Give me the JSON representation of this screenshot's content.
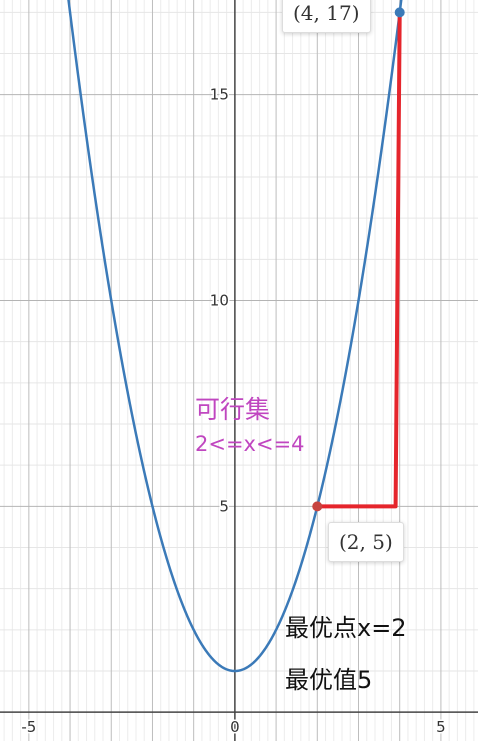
{
  "chart_data": {
    "type": "line",
    "xlim": [
      -5.7,
      5.9
    ],
    "ylim": [
      -0.7,
      17.3
    ],
    "x_ticks": [
      -5,
      0,
      5
    ],
    "y_ticks": [
      5,
      10,
      15
    ],
    "x_tick_labels": [
      "-5",
      "0",
      "5"
    ],
    "y_tick_labels": [
      "5",
      "10",
      "15"
    ],
    "grid": true,
    "series": [
      {
        "kind": "curve",
        "function": "x^2+1",
        "color": "#3b7ab8"
      },
      {
        "kind": "polyline",
        "points": [
          [
            2,
            5
          ],
          [
            3.9,
            5
          ],
          [
            4,
            17
          ]
        ],
        "color": "#e5252c"
      }
    ],
    "points": [
      {
        "x": 2,
        "y": 5,
        "label": "(2, 5)",
        "color": "#c74440"
      },
      {
        "x": 4,
        "y": 17,
        "label": "(4, 17)",
        "color": "#3b7ab8"
      }
    ],
    "annotations": {
      "feasible_set_title": "可行集",
      "feasible_set_range": "2<=x<=4",
      "optimal_point": "最优点x=2",
      "optimal_value": "最优值5"
    }
  }
}
